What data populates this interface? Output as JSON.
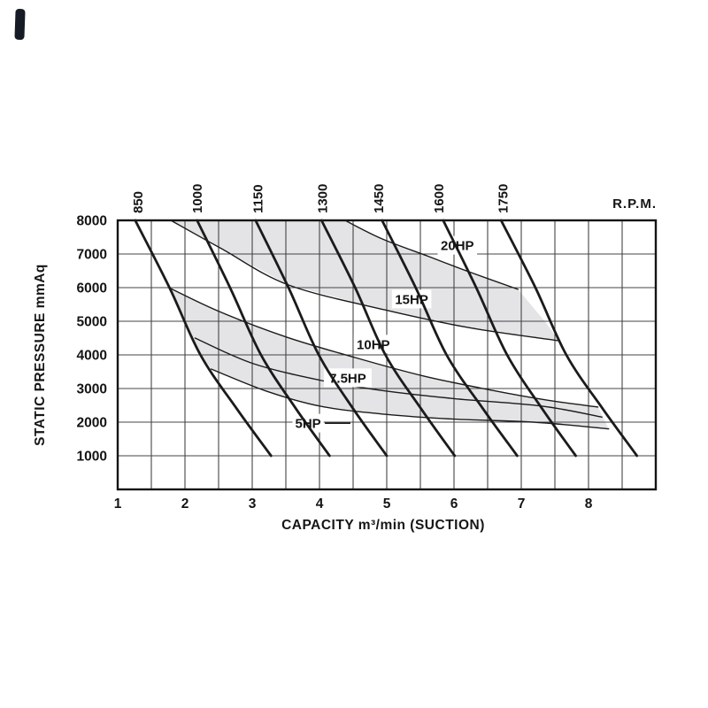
{
  "page": {
    "background": "#ffffff"
  },
  "corner_mark": {
    "color": "#161b25"
  },
  "chart_data": {
    "type": "line",
    "title": "",
    "xlabel": "CAPACITY m³/min (SUCTION)",
    "ylabel": "STATIC PRESSURE mmAq",
    "rpm_unit_label": "R.P.M.",
    "x_axis": {
      "min": 1,
      "max": 9,
      "grid_step": 0.5,
      "ticks": [
        1,
        2,
        3,
        4,
        5,
        6,
        7,
        8
      ]
    },
    "y_axis": {
      "min": 0,
      "max": 8000,
      "grid_step": 1000,
      "ticks": [
        1000,
        2000,
        3000,
        4000,
        5000,
        6000,
        7000,
        8000
      ]
    },
    "grid": true,
    "legend_position": "none",
    "colors": {
      "line": "#1b1b1b",
      "grid": "#454545",
      "band": "#e4e4e6",
      "background": "#ffffff"
    },
    "rpm_lines": [
      {
        "label": "850",
        "label_cap": 1.29,
        "points": [
          [
            1.26,
            8000
          ],
          [
            1.77,
            6000
          ],
          [
            2.23,
            4000
          ],
          [
            2.77,
            2400
          ],
          [
            3.28,
            1000
          ]
        ]
      },
      {
        "label": "1000",
        "label_cap": 2.17,
        "points": [
          [
            2.18,
            8000
          ],
          [
            2.67,
            6000
          ],
          [
            3.13,
            4000
          ],
          [
            3.65,
            2400
          ],
          [
            4.15,
            1000
          ]
        ]
      },
      {
        "label": "1150",
        "label_cap": 3.07,
        "points": [
          [
            3.05,
            8000
          ],
          [
            3.54,
            6000
          ],
          [
            3.99,
            4000
          ],
          [
            4.5,
            2400
          ],
          [
            5.0,
            1000
          ]
        ]
      },
      {
        "label": "1300",
        "label_cap": 4.03,
        "points": [
          [
            4.03,
            8000
          ],
          [
            4.53,
            6000
          ],
          [
            4.98,
            4000
          ],
          [
            5.51,
            2400
          ],
          [
            6.01,
            1000
          ]
        ]
      },
      {
        "label": "1450",
        "label_cap": 4.87,
        "points": [
          [
            4.93,
            8000
          ],
          [
            5.43,
            6000
          ],
          [
            5.89,
            4000
          ],
          [
            6.43,
            2400
          ],
          [
            6.94,
            1000
          ]
        ]
      },
      {
        "label": "1600",
        "label_cap": 5.76,
        "points": [
          [
            5.84,
            8000
          ],
          [
            6.33,
            6000
          ],
          [
            6.79,
            4000
          ],
          [
            7.31,
            2400
          ],
          [
            7.81,
            1000
          ]
        ]
      },
      {
        "label": "1750",
        "label_cap": 6.72,
        "points": [
          [
            6.7,
            8000
          ],
          [
            7.21,
            6000
          ],
          [
            7.67,
            4000
          ],
          [
            8.21,
            2400
          ],
          [
            8.72,
            1000
          ]
        ]
      }
    ],
    "hp_curves": [
      {
        "label": "20HP",
        "label_cap": 6.05,
        "label_pressure": 7260,
        "points": [
          [
            4.38,
            8000
          ],
          [
            4.93,
            7450
          ],
          [
            5.63,
            6920
          ],
          [
            6.25,
            6450
          ],
          [
            6.95,
            5950
          ]
        ]
      },
      {
        "label": "15HP",
        "label_cap": 5.37,
        "label_pressure": 5660,
        "points": [
          [
            1.79,
            8000
          ],
          [
            2.55,
            7150
          ],
          [
            3.54,
            6080
          ],
          [
            4.97,
            5340
          ],
          [
            6.25,
            4800
          ],
          [
            7.56,
            4420
          ]
        ]
      },
      {
        "label": "10HP",
        "label_cap": 4.8,
        "label_pressure": 4320,
        "points": [
          [
            1.76,
            6000
          ],
          [
            2.51,
            5290
          ],
          [
            3.51,
            4530
          ],
          [
            4.53,
            3920
          ],
          [
            5.55,
            3370
          ],
          [
            6.56,
            2950
          ],
          [
            7.4,
            2650
          ],
          [
            8.14,
            2450
          ]
        ]
      },
      {
        "label": "7.5HP",
        "label_cap": 4.42,
        "label_pressure": 3320,
        "points": [
          [
            2.15,
            4500
          ],
          [
            3.0,
            3750
          ],
          [
            4.0,
            3250
          ],
          [
            4.9,
            2950
          ],
          [
            6.0,
            2700
          ],
          [
            7.3,
            2480
          ],
          [
            8.2,
            2150
          ]
        ]
      },
      {
        "label": "5HP",
        "label_cap": 3.83,
        "label_pressure": 1970,
        "points": [
          [
            2.39,
            3580
          ],
          [
            3.2,
            2930
          ],
          [
            4.02,
            2470
          ],
          [
            5.0,
            2230
          ],
          [
            6.0,
            2090
          ],
          [
            7.18,
            2000
          ],
          [
            8.3,
            1800
          ]
        ]
      }
    ],
    "label_dash": {
      "pressure": 1970,
      "cap_from": 4.08,
      "cap_to": 4.46
    },
    "shaded_bands": [
      {
        "name": "upper-band",
        "points": [
          [
            1.79,
            8000
          ],
          [
            2.55,
            7150
          ],
          [
            3.54,
            6080
          ],
          [
            4.97,
            5340
          ],
          [
            6.25,
            4800
          ],
          [
            7.56,
            4420
          ],
          [
            7.35,
            5000
          ],
          [
            6.95,
            5950
          ],
          [
            6.25,
            6450
          ],
          [
            5.63,
            6920
          ],
          [
            4.93,
            7450
          ],
          [
            4.38,
            8000
          ]
        ]
      },
      {
        "name": "lower-band",
        "points": [
          [
            1.75,
            6000
          ],
          [
            2.51,
            5290
          ],
          [
            3.51,
            4530
          ],
          [
            4.53,
            3920
          ],
          [
            5.55,
            3370
          ],
          [
            6.56,
            2950
          ],
          [
            7.4,
            2650
          ],
          [
            8.14,
            2450
          ],
          [
            8.3,
            1800
          ],
          [
            7.18,
            2000
          ],
          [
            6.0,
            2090
          ],
          [
            5.0,
            2230
          ],
          [
            4.02,
            2470
          ],
          [
            3.2,
            2930
          ],
          [
            2.39,
            3580
          ],
          [
            2.23,
            4000
          ],
          [
            2.0,
            5000
          ]
        ]
      }
    ]
  }
}
